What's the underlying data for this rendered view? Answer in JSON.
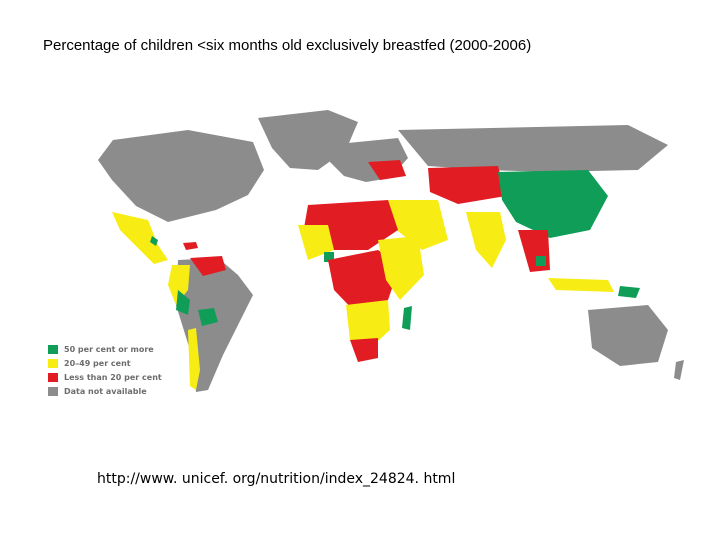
{
  "title": "Percentage of children <six months old exclusively breastfed (2000-2006)",
  "legend": [
    {
      "label": "50 per cent or more",
      "color": "#0f9d58"
    },
    {
      "label": "20–49 per cent",
      "color": "#f7ec13"
    },
    {
      "label": "Less than 20 per cent",
      "color": "#e21c23"
    },
    {
      "label": "Data not available",
      "color": "#8c8c8c"
    }
  ],
  "source_url": "http://www. unicef. org/nutrition/index_24824. html"
}
